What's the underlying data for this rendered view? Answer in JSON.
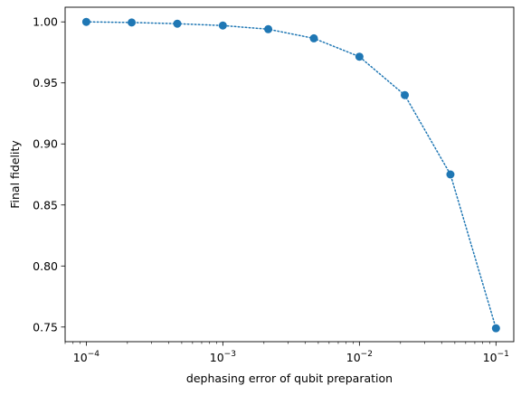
{
  "chart_data": {
    "type": "line",
    "title": "",
    "xlabel": "dephasing error of qubit preparation",
    "ylabel": "Final fidelity",
    "xscale": "log",
    "xlim": [
      7e-05,
      0.135
    ],
    "ylim": [
      0.738,
      1.012
    ],
    "grid": false,
    "legend": "none",
    "x_ticks": [
      {
        "value": 0.0001,
        "base": "10",
        "exp": "−4"
      },
      {
        "value": 0.001,
        "base": "10",
        "exp": "−3"
      },
      {
        "value": 0.01,
        "base": "10",
        "exp": "−2"
      },
      {
        "value": 0.1,
        "base": "10",
        "exp": "−1"
      }
    ],
    "y_ticks": [
      {
        "value": 0.75,
        "label": "0.75"
      },
      {
        "value": 0.8,
        "label": "0.80"
      },
      {
        "value": 0.85,
        "label": "0.85"
      },
      {
        "value": 0.9,
        "label": "0.90"
      },
      {
        "value": 0.95,
        "label": "0.95"
      },
      {
        "value": 1.0,
        "label": "1.00"
      }
    ],
    "series": [
      {
        "color": "#1f77b4",
        "line_style": "dotted",
        "marker": "circle",
        "x": [
          0.0001,
          0.000215,
          0.000464,
          0.001,
          0.00215,
          0.00464,
          0.01,
          0.0215,
          0.0464,
          0.1
        ],
        "y": [
          1.0,
          0.9995,
          0.9985,
          0.997,
          0.994,
          0.9865,
          0.9715,
          0.94,
          0.875,
          0.749
        ]
      }
    ]
  }
}
